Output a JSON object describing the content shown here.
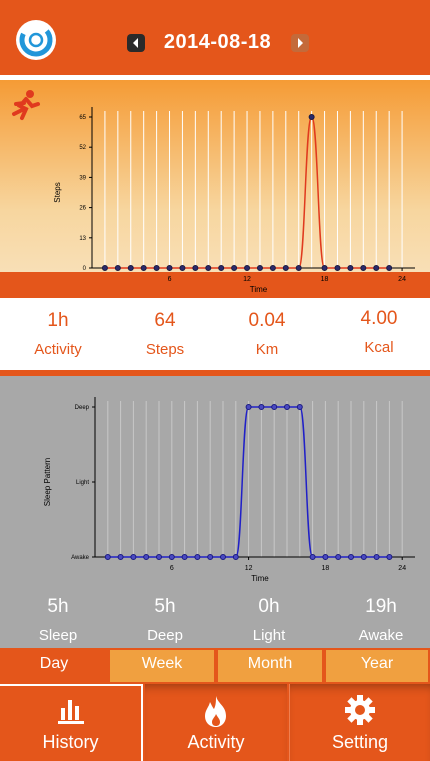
{
  "header": {
    "date": "2014-08-18"
  },
  "activity_chart": {
    "chart_data": {
      "type": "line",
      "xlabel": "Time",
      "ylabel": "Steps",
      "xlim": [
        0,
        25
      ],
      "ylim": [
        0,
        65
      ],
      "x_ticks": [
        6,
        12,
        18,
        24
      ],
      "y_ticks": [
        0,
        13,
        26,
        39,
        52,
        65
      ],
      "points": [
        [
          1,
          0
        ],
        [
          2,
          0
        ],
        [
          3,
          0
        ],
        [
          4,
          0
        ],
        [
          5,
          0
        ],
        [
          6,
          0
        ],
        [
          7,
          0
        ],
        [
          8,
          0
        ],
        [
          9,
          0
        ],
        [
          10,
          0
        ],
        [
          11,
          0
        ],
        [
          12,
          0
        ],
        [
          13,
          0
        ],
        [
          14,
          0
        ],
        [
          15,
          0
        ],
        [
          16,
          0
        ],
        [
          17,
          65
        ],
        [
          18,
          0
        ],
        [
          19,
          0
        ],
        [
          20,
          0
        ],
        [
          21,
          0
        ],
        [
          22,
          0
        ],
        [
          23,
          0
        ]
      ],
      "series_color": "#e03a1e",
      "grid": true
    }
  },
  "activity_stats": [
    {
      "value": "1h",
      "label": "Activity"
    },
    {
      "value": "64",
      "label": "Steps"
    },
    {
      "value": "0.04",
      "label": "Km"
    },
    {
      "value": "4.00",
      "label": "Kcal"
    }
  ],
  "sleep_chart": {
    "chart_data": {
      "type": "line",
      "xlabel": "Time",
      "ylabel": "Sleep Pattern",
      "xlim": [
        0,
        25
      ],
      "ylim": [
        0,
        2
      ],
      "x_ticks": [
        6,
        12,
        18,
        24
      ],
      "y_ticks": [
        0,
        1,
        2
      ],
      "y_tick_labels": [
        "Awake",
        "Light",
        "Deep"
      ],
      "points": [
        [
          1,
          0
        ],
        [
          2,
          0
        ],
        [
          3,
          0
        ],
        [
          4,
          0
        ],
        [
          5,
          0
        ],
        [
          6,
          0
        ],
        [
          7,
          0
        ],
        [
          8,
          0
        ],
        [
          9,
          0
        ],
        [
          10,
          0
        ],
        [
          11,
          0
        ],
        [
          12,
          2
        ],
        [
          13,
          2
        ],
        [
          14,
          2
        ],
        [
          15,
          2
        ],
        [
          16,
          2
        ],
        [
          17,
          0
        ],
        [
          18,
          0
        ],
        [
          19,
          0
        ],
        [
          20,
          0
        ],
        [
          21,
          0
        ],
        [
          22,
          0
        ],
        [
          23,
          0
        ]
      ],
      "series_color": "#2020c8",
      "grid": true
    }
  },
  "sleep_stats": [
    {
      "value": "5h",
      "label": "Sleep"
    },
    {
      "value": "5h",
      "label": "Deep"
    },
    {
      "value": "0h",
      "label": "Light"
    },
    {
      "value": "19h",
      "label": "Awake"
    }
  ],
  "range_tabs": [
    {
      "label": "Day",
      "active": true
    },
    {
      "label": "Week",
      "active": false
    },
    {
      "label": "Month",
      "active": false
    },
    {
      "label": "Year",
      "active": false
    }
  ],
  "bottom_nav": [
    {
      "label": "History",
      "icon": "bar-chart-icon",
      "active": true
    },
    {
      "label": "Activity",
      "icon": "flame-icon",
      "active": false
    },
    {
      "label": "Setting",
      "icon": "gear-icon",
      "active": false
    }
  ],
  "colors": {
    "accent": "#e4561b",
    "tab_inactive": "#f0a040",
    "sleep_bg": "#a8a8a8"
  }
}
